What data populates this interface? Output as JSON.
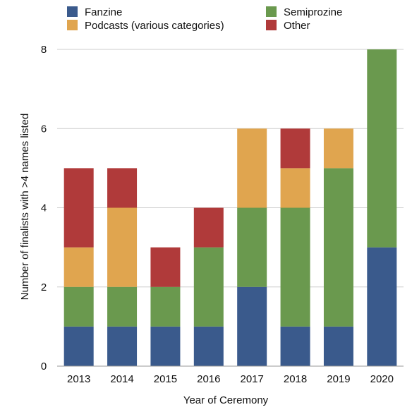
{
  "chart_data": {
    "type": "bar",
    "stacked": true,
    "categories": [
      "2013",
      "2014",
      "2015",
      "2016",
      "2017",
      "2018",
      "2019",
      "2020"
    ],
    "series": [
      {
        "name": "Fanzine",
        "color": "#3a5a8c",
        "values": [
          1,
          1,
          1,
          1,
          2,
          1,
          1,
          3
        ]
      },
      {
        "name": "Semiprozine",
        "color": "#6a994e",
        "values": [
          1,
          1,
          1,
          2,
          2,
          3,
          4,
          5
        ]
      },
      {
        "name": "Podcasts (various categories)",
        "color": "#e0a54f",
        "values": [
          1,
          2,
          0,
          0,
          2,
          1,
          1,
          0
        ]
      },
      {
        "name": "Other",
        "color": "#b03a3a",
        "values": [
          2,
          1,
          1,
          1,
          0,
          1,
          0,
          0
        ]
      }
    ],
    "xlabel": "Year of Ceremony",
    "ylabel": "Number of finalists with >4 names listed",
    "ylim": [
      0,
      8
    ],
    "yticks": [
      0,
      2,
      4,
      6,
      8
    ],
    "grid": true,
    "legend_position": "top",
    "legend_columns": [
      [
        "Fanzine",
        "Podcasts (various categories)"
      ],
      [
        "Semiprozine",
        "Other"
      ]
    ],
    "gridline_color": "#cccccc",
    "axis_color": "#999999"
  }
}
